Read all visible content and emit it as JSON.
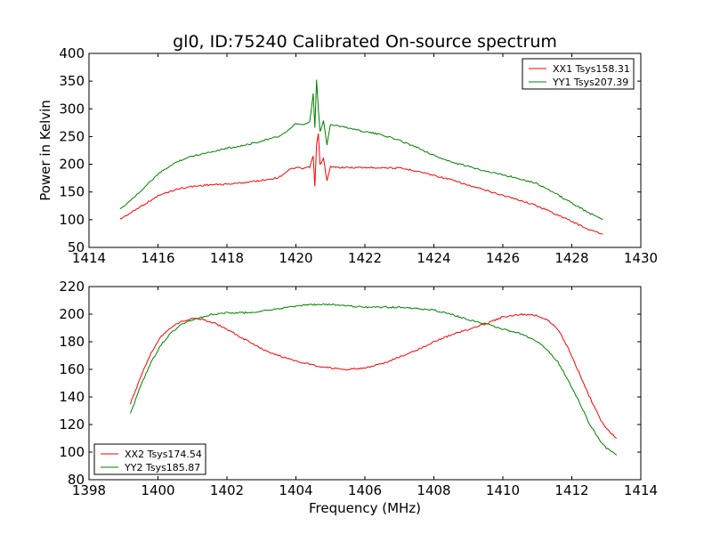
{
  "figure": {
    "title": "gl0, ID:75240 Calibrated On-source spectrum"
  },
  "chart_data": [
    {
      "type": "line",
      "title": "gl0, ID:75240 Calibrated On-source spectrum",
      "xlabel": "",
      "ylabel": "Power in Kelvin",
      "xlim": [
        1414,
        1430
      ],
      "ylim": [
        50,
        400
      ],
      "xticks": [
        "1414",
        "1416",
        "1418",
        "1420",
        "1422",
        "1424",
        "1426",
        "1428",
        "1430"
      ],
      "yticks": [
        "50",
        "100",
        "150",
        "200",
        "250",
        "300",
        "350",
        "400"
      ],
      "grid": false,
      "legend_position": "top-right",
      "series": [
        {
          "name": "XX1 Tsys158.31",
          "color": "#ff0000",
          "x": [
            1414.9,
            1415.2,
            1415.5,
            1415.8,
            1416.0,
            1416.3,
            1416.6,
            1417.0,
            1417.5,
            1418.0,
            1418.5,
            1419.0,
            1419.5,
            1419.8,
            1420.0,
            1420.2,
            1420.4,
            1420.5,
            1420.55,
            1420.6,
            1420.65,
            1420.7,
            1420.8,
            1420.9,
            1421.0,
            1421.5,
            1422.0,
            1422.5,
            1423.0,
            1423.5,
            1424.0,
            1424.5,
            1425.0,
            1425.5,
            1426.0,
            1426.5,
            1427.0,
            1427.5,
            1428.0,
            1428.5,
            1428.9
          ],
          "y": [
            101,
            112,
            124,
            135,
            143,
            150,
            156,
            160,
            163,
            164,
            167,
            171,
            176,
            190,
            194,
            192,
            195,
            215,
            160,
            235,
            254,
            200,
            210,
            170,
            195,
            194,
            194,
            194,
            193,
            188,
            180,
            172,
            162,
            153,
            144,
            135,
            125,
            111,
            97,
            82,
            74
          ]
        },
        {
          "name": "YY1 Tsys207.39",
          "color": "#008000",
          "x": [
            1414.9,
            1415.2,
            1415.5,
            1415.8,
            1416.0,
            1416.3,
            1416.6,
            1417.0,
            1417.5,
            1418.0,
            1418.5,
            1419.0,
            1419.5,
            1419.8,
            1420.0,
            1420.2,
            1420.4,
            1420.45,
            1420.5,
            1420.55,
            1420.6,
            1420.65,
            1420.7,
            1420.8,
            1420.9,
            1421.0,
            1421.5,
            1422.0,
            1422.5,
            1423.0,
            1423.5,
            1424.0,
            1424.5,
            1425.0,
            1425.5,
            1426.0,
            1426.5,
            1427.0,
            1427.5,
            1428.0,
            1428.5,
            1428.9
          ],
          "y": [
            118,
            135,
            152,
            170,
            182,
            195,
            206,
            215,
            222,
            229,
            234,
            242,
            250,
            262,
            273,
            271,
            276,
            300,
            328,
            265,
            353,
            300,
            258,
            278,
            236,
            272,
            266,
            259,
            253,
            243,
            231,
            216,
            204,
            196,
            188,
            181,
            174,
            165,
            148,
            130,
            112,
            101
          ]
        }
      ]
    },
    {
      "type": "line",
      "title": "",
      "xlabel": "Frequency (MHz)",
      "ylabel": "",
      "xlim": [
        1398,
        1414
      ],
      "ylim": [
        80,
        220
      ],
      "xticks": [
        "1398",
        "1400",
        "1402",
        "1404",
        "1406",
        "1408",
        "1410",
        "1412",
        "1414"
      ],
      "yticks": [
        "80",
        "100",
        "120",
        "140",
        "160",
        "180",
        "200",
        "220"
      ],
      "grid": false,
      "legend_position": "bottom-left",
      "series": [
        {
          "name": "XX2 Tsys174.54",
          "color": "#ff0000",
          "x": [
            1399.2,
            1399.5,
            1399.8,
            1400.1,
            1400.4,
            1400.7,
            1401.0,
            1401.3,
            1401.6,
            1402.0,
            1402.5,
            1403.0,
            1403.5,
            1404.0,
            1404.5,
            1405.0,
            1405.5,
            1406.0,
            1406.5,
            1407.0,
            1407.5,
            1408.0,
            1408.5,
            1409.0,
            1409.5,
            1410.0,
            1410.5,
            1411.0,
            1411.3,
            1411.6,
            1411.9,
            1412.2,
            1412.5,
            1412.8,
            1413.0,
            1413.3
          ],
          "y": [
            135,
            155,
            172,
            184,
            191,
            195,
            197,
            196,
            194,
            189,
            182,
            175,
            170,
            166,
            163,
            161,
            160,
            161,
            164,
            169,
            174,
            180,
            185,
            189,
            193,
            198,
            200,
            199,
            196,
            189,
            175,
            158,
            141,
            125,
            117,
            110
          ]
        },
        {
          "name": "YY2 Tsys185.87",
          "color": "#008000",
          "x": [
            1399.2,
            1399.5,
            1399.8,
            1400.1,
            1400.4,
            1400.7,
            1401.0,
            1401.3,
            1401.6,
            1402.0,
            1402.5,
            1403.0,
            1403.5,
            1404.0,
            1404.5,
            1405.0,
            1405.5,
            1406.0,
            1406.5,
            1407.0,
            1407.5,
            1408.0,
            1408.5,
            1409.0,
            1409.5,
            1410.0,
            1410.5,
            1411.0,
            1411.3,
            1411.6,
            1411.9,
            1412.2,
            1412.5,
            1412.8,
            1413.0,
            1413.3
          ],
          "y": [
            128,
            148,
            165,
            178,
            187,
            193,
            196,
            198,
            200,
            201,
            201,
            202,
            204,
            206,
            207,
            207,
            206,
            205,
            205,
            205,
            204,
            203,
            200,
            196,
            193,
            189,
            186,
            180,
            174,
            165,
            152,
            137,
            121,
            109,
            103,
            98
          ]
        }
      ]
    }
  ]
}
